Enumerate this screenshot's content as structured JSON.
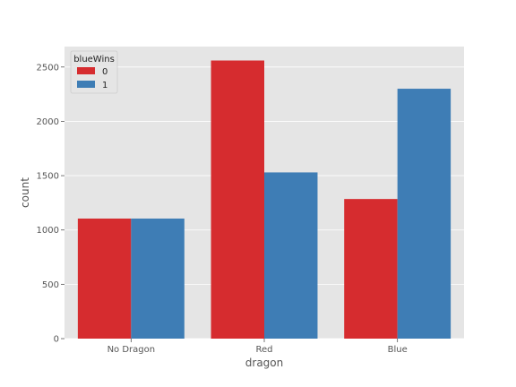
{
  "chart_data": {
    "type": "bar",
    "title": "",
    "xlabel": "dragon",
    "ylabel": "count",
    "categories": [
      "No Dragon",
      "Red",
      "Blue"
    ],
    "series": [
      {
        "name": "0",
        "values": [
          1105,
          2560,
          1285
        ],
        "color": "#d62c2f"
      },
      {
        "name": "1",
        "values": [
          1105,
          1530,
          2300
        ],
        "color": "#3e7db5"
      }
    ],
    "ylim": [
      0,
      2688
    ],
    "yticks": [
      0,
      500,
      1000,
      1500,
      2000,
      2500
    ],
    "grid": true,
    "legend": {
      "title": "blueWins",
      "placement": "top-left"
    },
    "colors": {
      "background": "#e5e5e5",
      "grid": "#ffffff"
    }
  }
}
